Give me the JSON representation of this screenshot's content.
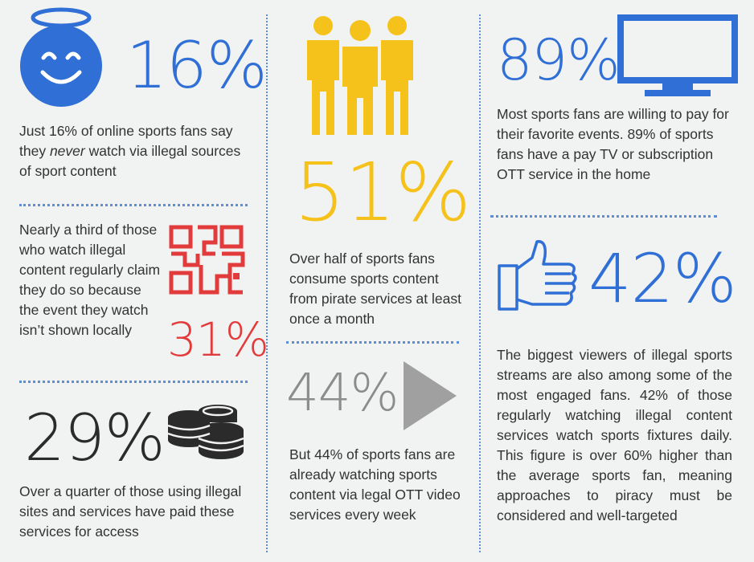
{
  "stats": {
    "never_watch": {
      "value": "16%",
      "text_before": "Just 16% of online sports fans say they ",
      "text_emph": "never",
      "text_after": " watch via illegal sources of sport content"
    },
    "locally": {
      "value": "31%",
      "text": "Nearly a third of those who watch illegal content regularly claim they do so because the event they watch isn’t shown locally"
    },
    "paid": {
      "value": "29%",
      "text": "Over a quarter of those using illegal sites and services have paid these services for access"
    },
    "pirate": {
      "value": "51%",
      "text": "Over half of sports fans consume sports content from pirate services at least once a month"
    },
    "legal_ott": {
      "value": "44%",
      "text": "But 44% of sports fans are already watching sports content via legal OTT video services every week"
    },
    "pay_tv": {
      "value": "89%",
      "text": "Most sports fans are willing to pay for their favorite events. 89% of sports fans have a pay TV or subscription OTT service in the home"
    },
    "engaged": {
      "value": "42%",
      "text": "The biggest viewers of illegal sports streams are also among some of the most engaged fans. 42% of those regularly watching illegal content services watch sports fixtures daily. This figure is over 60% higher than the average sports fan, meaning approaches to piracy must be considered and well-targeted"
    }
  },
  "colors": {
    "blue": "#2f6fd6",
    "yellow": "#f5c21b",
    "red": "#e23b3b",
    "gray": "#9b9b9b",
    "dark": "#2b2b2b",
    "divider": "#5b8fd9"
  },
  "icons": [
    "halo-smiley-icon",
    "qr-code-icon",
    "coins-icon",
    "people-icon",
    "play-icon",
    "tv-icon",
    "thumbs-up-icon"
  ]
}
